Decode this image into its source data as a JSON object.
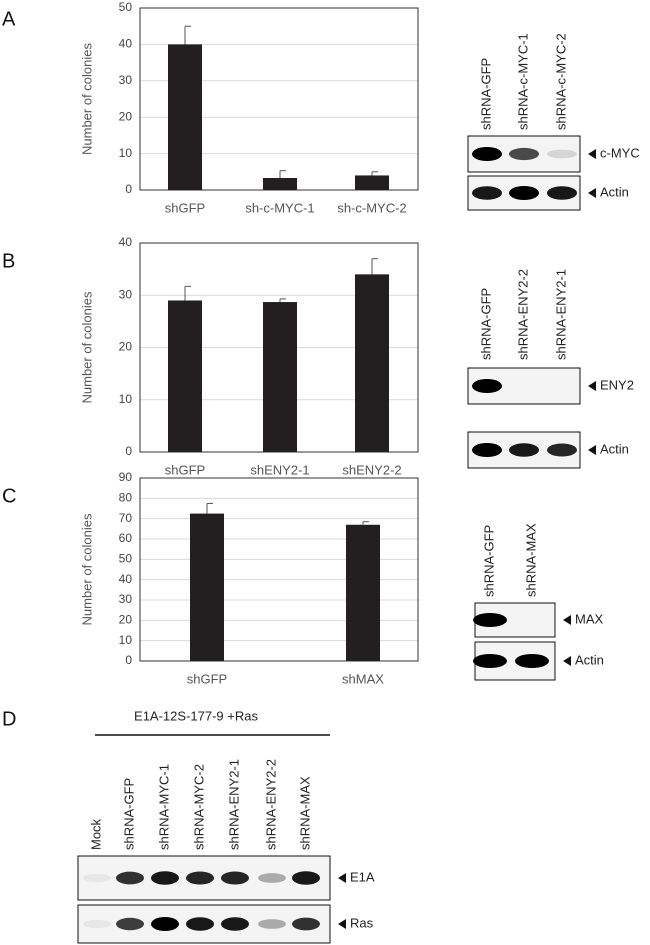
{
  "panel_labels": [
    "A",
    "B",
    "C",
    "D"
  ],
  "chart_data": [
    {
      "type": "bar",
      "ylabel": "Number of colonies",
      "categories": [
        "shGFP",
        "sh-c-MYC-1",
        "sh-c-MYC-2"
      ],
      "values": [
        40,
        3.3,
        4
      ],
      "errors": [
        5,
        2,
        1
      ],
      "color": "#231f20",
      "ylim": [
        0,
        50
      ],
      "yticks": [
        0,
        10,
        20,
        30,
        40,
        50
      ],
      "grid": true
    },
    {
      "type": "bar",
      "ylabel": "Number of colonies",
      "categories": [
        "shGFP",
        "shENY2-1",
        "shENY2-2"
      ],
      "values": [
        29,
        28.7,
        34
      ],
      "errors": [
        2.7,
        0.6,
        3
      ],
      "color": "#231f20",
      "ylim": [
        0,
        40
      ],
      "yticks": [
        0,
        10,
        20,
        30,
        40
      ],
      "grid": true
    },
    {
      "type": "bar",
      "ylabel": "Number of colonies",
      "categories": [
        "shGFP",
        "shMAX"
      ],
      "values": [
        72.5,
        67
      ],
      "errors": [
        5,
        1.5
      ],
      "color": "#231f20",
      "ylim": [
        0,
        90
      ],
      "yticks": [
        0,
        10,
        20,
        30,
        40,
        50,
        60,
        70,
        80,
        90
      ],
      "grid": true
    }
  ],
  "blots": [
    {
      "lanes": [
        "shRNA-GFP",
        "shRNA-c-MYC-1",
        "shRNA-c-MYC-2"
      ],
      "rows": [
        "c-MYC",
        "Actin"
      ]
    },
    {
      "lanes": [
        "shRNA-GFP",
        "shRNA-ENY2-2",
        "shRNA-ENY2-1"
      ],
      "rows": [
        "ENY2",
        "Actin"
      ]
    },
    {
      "lanes": [
        "shRNA-GFP",
        "shRNA-MAX"
      ],
      "rows": [
        "MAX",
        "Actin"
      ]
    },
    {
      "header": "E1A-12S-177-9 +Ras",
      "lanes": [
        "Mock",
        "shRNA-GFP",
        "shRNA-MYC-1",
        "shRNA-MYC-2",
        "shRNA-ENY2-1",
        "shRNA-ENY2-2",
        "shRNA-MAX"
      ],
      "rows": [
        "E1A",
        "Ras"
      ]
    }
  ]
}
